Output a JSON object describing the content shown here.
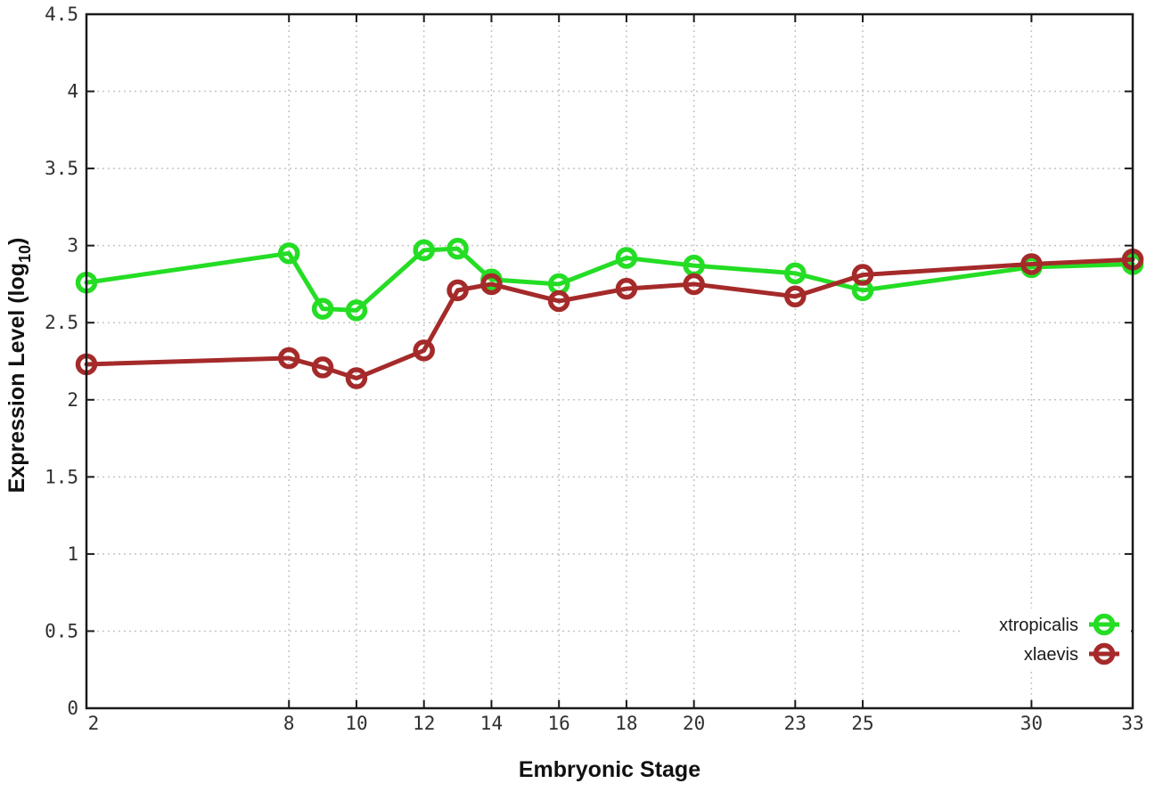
{
  "figure": {
    "background_color": "#ffffff",
    "border_color": "#1a1a1a",
    "grid_color": "#c4c4c4",
    "tick_label_color": "#303030"
  },
  "chart_data": {
    "type": "line",
    "title": "",
    "xlabel": "Embryonic Stage",
    "ylabel": "Expression Level (log10)",
    "ylabel_parts": {
      "pre": "Expression Level (log",
      "sub": "10",
      "post": ")"
    },
    "x": [
      2,
      8,
      9,
      10,
      12,
      13,
      14,
      16,
      18,
      20,
      23,
      25,
      30,
      33
    ],
    "series": [
      {
        "name": "xtropicalis",
        "color": "#24dd24",
        "values": [
          2.76,
          2.95,
          2.59,
          2.58,
          2.97,
          2.98,
          2.78,
          2.75,
          2.92,
          2.87,
          2.82,
          2.71,
          2.86,
          2.88
        ]
      },
      {
        "name": "xlaevis",
        "color": "#a52a2a",
        "values": [
          2.23,
          2.27,
          2.21,
          2.14,
          2.32,
          2.71,
          2.75,
          2.64,
          2.72,
          2.75,
          2.67,
          2.81,
          2.88,
          2.91
        ]
      }
    ],
    "xlim": [
      2,
      33
    ],
    "ylim": [
      0,
      4.5
    ],
    "xticks": [
      2,
      8,
      10,
      12,
      14,
      16,
      18,
      20,
      23,
      25,
      30,
      33
    ],
    "yticks": [
      0,
      0.5,
      1,
      1.5,
      2,
      2.5,
      3,
      3.5,
      4,
      4.5
    ],
    "grid": true,
    "grid_style": "dotted",
    "legend_position": "bottom-right",
    "marker": "open-circle"
  }
}
